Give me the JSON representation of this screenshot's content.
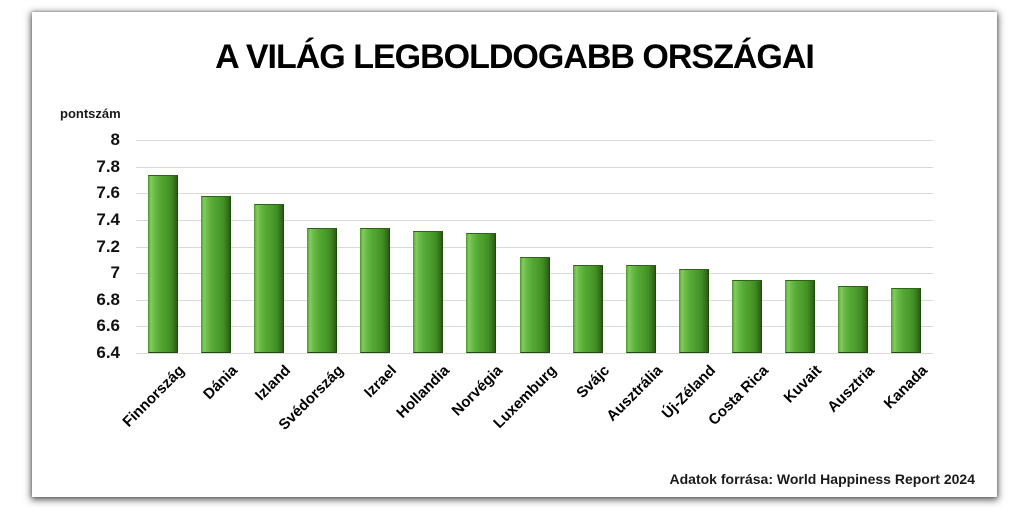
{
  "chart_data": {
    "type": "bar",
    "title": "A VILÁG LEGBOLDOGABB ORSZÁGAI",
    "ylabel": "pontszám",
    "xlabel": "",
    "source": "Adatok forrása: World Happiness Report 2024",
    "categories": [
      "Finnország",
      "Dánia",
      "Izland",
      "Svédország",
      "Izrael",
      "Hollandia",
      "Norvégia",
      "Luxemburg",
      "Svájc",
      "Ausztrália",
      "Új-Zéland",
      "Costa Rica",
      "Kuvait",
      "Ausztria",
      "Kanada"
    ],
    "values": [
      7.74,
      7.58,
      7.52,
      7.34,
      7.34,
      7.32,
      7.3,
      7.12,
      7.06,
      7.06,
      7.03,
      6.95,
      6.95,
      6.9,
      6.89
    ],
    "ylim": [
      6.4,
      8.0
    ],
    "ytick_labels": [
      "8",
      "7.8",
      "7.6",
      "7.4",
      "7.2",
      "7",
      "6.8",
      "6.6",
      "6.4"
    ],
    "grid": true,
    "legend": "none",
    "bar_color": "#4c9c2d",
    "bar_highlight": "#85cb60",
    "bar_shadow": "#2b5c14",
    "gridline_color": "#d9d9d9"
  }
}
